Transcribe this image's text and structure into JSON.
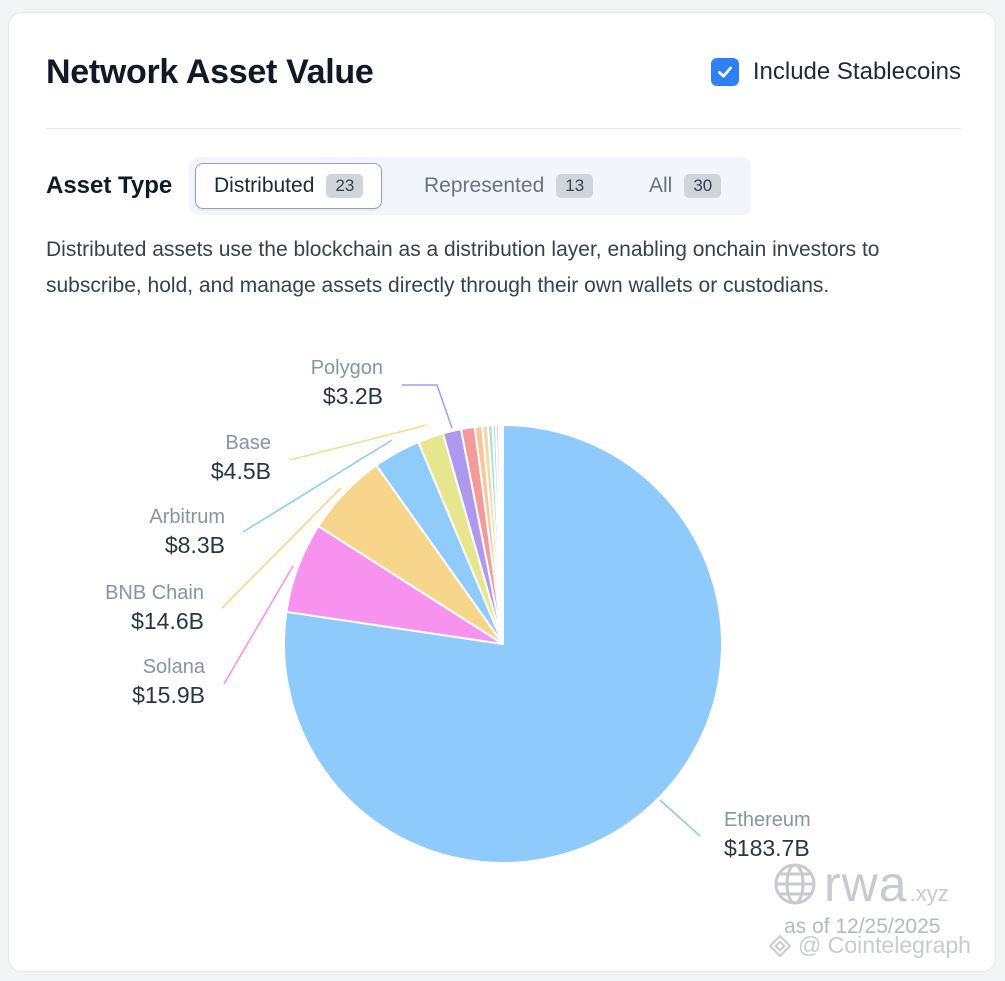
{
  "header": {
    "title": "Network Asset Value",
    "include_stablecoins_label": "Include Stablecoins",
    "include_stablecoins_checked": true
  },
  "filters": {
    "label": "Asset Type",
    "tabs": [
      {
        "label": "Distributed",
        "count": "23",
        "active": true
      },
      {
        "label": "Represented",
        "count": "13",
        "active": false
      },
      {
        "label": "All",
        "count": "30",
        "active": false
      }
    ]
  },
  "description": "Distributed assets use the blockchain as a distribution layer, enabling onchain investors to subscribe, hold, and manage assets directly through their own wallets or custodians.",
  "colors": {
    "accent": "#2f7ff5",
    "ethereum": "#8ecafc",
    "solana": "#f793ee",
    "bnb_chain": "#f7d58b",
    "arbitrum": "#8fcbfb",
    "base": "#e6e68f",
    "polygon": "#ae99ef"
  },
  "chart_data": {
    "type": "pie",
    "slices": [
      {
        "name": "Ethereum",
        "value": 183.7,
        "label": "$183.7B",
        "color": "#8ecafc"
      },
      {
        "name": "Solana",
        "value": 15.9,
        "label": "$15.9B",
        "color": "#f793ee"
      },
      {
        "name": "BNB Chain",
        "value": 14.6,
        "label": "$14.6B",
        "color": "#f7d58b"
      },
      {
        "name": "Arbitrum",
        "value": 8.3,
        "label": "$8.3B",
        "color": "#8fcbfb"
      },
      {
        "name": "Base",
        "value": 4.5,
        "label": "$4.5B",
        "color": "#e6e68f"
      },
      {
        "name": "Polygon",
        "value": 3.2,
        "label": "$3.2B",
        "color": "#ae99ef"
      },
      {
        "name": "",
        "value": 2.4,
        "label": "",
        "color": "#f59a9a"
      },
      {
        "name": "",
        "value": 1.3,
        "label": "",
        "color": "#fbc49a"
      },
      {
        "name": "",
        "value": 1.0,
        "label": "",
        "color": "#f6d7a1"
      },
      {
        "name": "",
        "value": 0.8,
        "label": "",
        "color": "#a6e3c8"
      },
      {
        "name": "",
        "value": 0.6,
        "label": "",
        "color": "#b9dcf5"
      },
      {
        "name": "",
        "value": 0.5,
        "label": "",
        "color": "#f4b6d4"
      },
      {
        "name": "",
        "value": 0.4,
        "label": "",
        "color": "#d7e9a6"
      },
      {
        "name": "",
        "value": 0.3,
        "label": "",
        "color": "#c8c2f0"
      }
    ],
    "unit": "$B",
    "legend": "none"
  },
  "watermark": {
    "brand": "rwa",
    "brand_suffix": ".xyz",
    "as_of": "as of 12/25/2025",
    "credit": "@ Cointelegraph"
  }
}
